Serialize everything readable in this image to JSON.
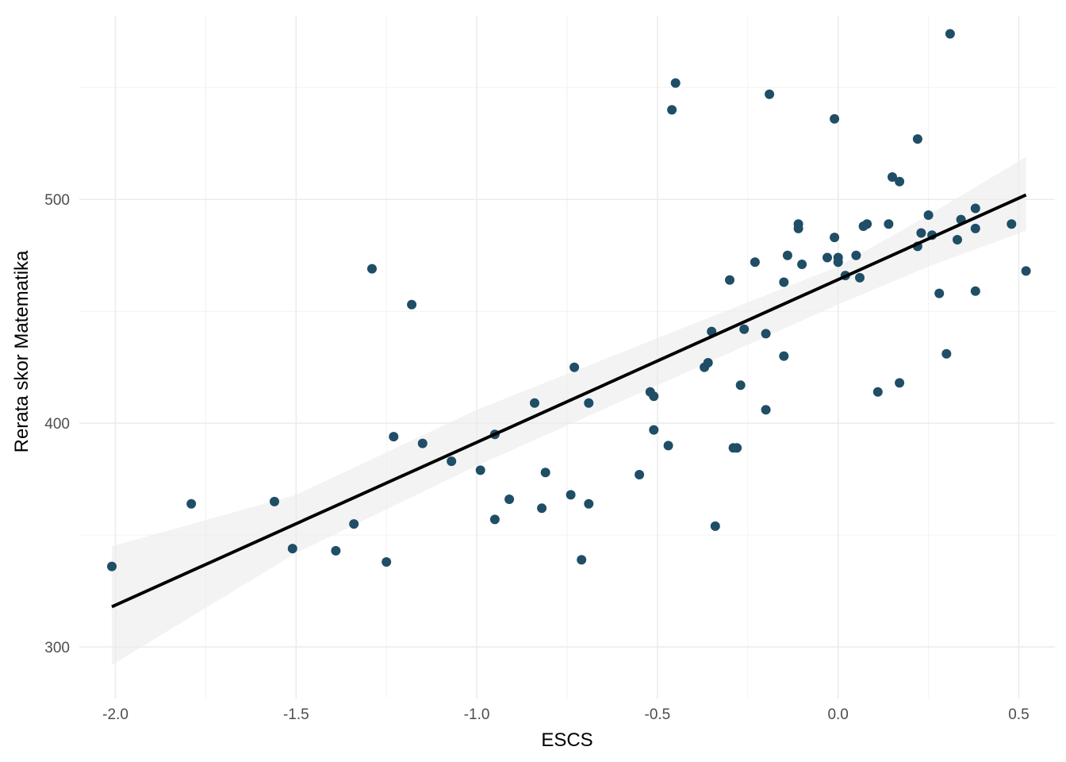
{
  "chart_data": {
    "type": "scatter",
    "title": "",
    "xlabel": "ESCS",
    "ylabel": "Rerata skor Matematika",
    "xlim": [
      -2.1,
      0.6
    ],
    "ylim": [
      277,
      582
    ],
    "x_ticks": [
      -2.0,
      -1.5,
      -1.0,
      -0.5,
      0.0,
      0.5
    ],
    "x_tick_labels": [
      "-2.0",
      "-1.5",
      "-1.0",
      "-0.5",
      "0.0",
      "0.5"
    ],
    "y_ticks": [
      300,
      400,
      500
    ],
    "y_tick_labels": [
      "300",
      "400",
      "500"
    ],
    "grid": true,
    "point_color": "#1f4e66",
    "line_color": "#000000",
    "ribbon_color": "#ebebeb",
    "points": [
      {
        "x": -2.01,
        "y": 336
      },
      {
        "x": -1.79,
        "y": 364
      },
      {
        "x": -1.56,
        "y": 365
      },
      {
        "x": -1.51,
        "y": 344
      },
      {
        "x": -1.39,
        "y": 343
      },
      {
        "x": -1.34,
        "y": 355
      },
      {
        "x": -1.29,
        "y": 469
      },
      {
        "x": -1.25,
        "y": 338
      },
      {
        "x": -1.23,
        "y": 394
      },
      {
        "x": -1.18,
        "y": 453
      },
      {
        "x": -1.15,
        "y": 391
      },
      {
        "x": -1.07,
        "y": 383
      },
      {
        "x": -0.99,
        "y": 379
      },
      {
        "x": -0.95,
        "y": 395
      },
      {
        "x": -0.95,
        "y": 357
      },
      {
        "x": -0.91,
        "y": 366
      },
      {
        "x": -0.84,
        "y": 409
      },
      {
        "x": -0.82,
        "y": 362
      },
      {
        "x": -0.81,
        "y": 378
      },
      {
        "x": -0.74,
        "y": 368
      },
      {
        "x": -0.73,
        "y": 425
      },
      {
        "x": -0.71,
        "y": 339
      },
      {
        "x": -0.69,
        "y": 409
      },
      {
        "x": -0.69,
        "y": 364
      },
      {
        "x": -0.55,
        "y": 377
      },
      {
        "x": -0.52,
        "y": 414
      },
      {
        "x": -0.51,
        "y": 412
      },
      {
        "x": -0.51,
        "y": 397
      },
      {
        "x": -0.47,
        "y": 390
      },
      {
        "x": -0.46,
        "y": 540
      },
      {
        "x": -0.45,
        "y": 552
      },
      {
        "x": -0.37,
        "y": 425
      },
      {
        "x": -0.36,
        "y": 427
      },
      {
        "x": -0.35,
        "y": 441
      },
      {
        "x": -0.34,
        "y": 354
      },
      {
        "x": -0.3,
        "y": 464
      },
      {
        "x": -0.29,
        "y": 389
      },
      {
        "x": -0.28,
        "y": 389
      },
      {
        "x": -0.27,
        "y": 417
      },
      {
        "x": -0.26,
        "y": 442
      },
      {
        "x": -0.23,
        "y": 472
      },
      {
        "x": -0.2,
        "y": 440
      },
      {
        "x": -0.2,
        "y": 406
      },
      {
        "x": -0.19,
        "y": 547
      },
      {
        "x": -0.15,
        "y": 463
      },
      {
        "x": -0.15,
        "y": 430
      },
      {
        "x": -0.14,
        "y": 475
      },
      {
        "x": -0.11,
        "y": 489
      },
      {
        "x": -0.11,
        "y": 487
      },
      {
        "x": -0.1,
        "y": 471
      },
      {
        "x": -0.03,
        "y": 474
      },
      {
        "x": -0.01,
        "y": 483
      },
      {
        "x": -0.01,
        "y": 536
      },
      {
        "x": 0.0,
        "y": 474
      },
      {
        "x": 0.0,
        "y": 472
      },
      {
        "x": 0.02,
        "y": 466
      },
      {
        "x": 0.05,
        "y": 475
      },
      {
        "x": 0.06,
        "y": 465
      },
      {
        "x": 0.07,
        "y": 488
      },
      {
        "x": 0.08,
        "y": 489
      },
      {
        "x": 0.11,
        "y": 414
      },
      {
        "x": 0.14,
        "y": 489
      },
      {
        "x": 0.15,
        "y": 510
      },
      {
        "x": 0.17,
        "y": 508
      },
      {
        "x": 0.17,
        "y": 418
      },
      {
        "x": 0.22,
        "y": 479
      },
      {
        "x": 0.22,
        "y": 527
      },
      {
        "x": 0.23,
        "y": 485
      },
      {
        "x": 0.25,
        "y": 493
      },
      {
        "x": 0.26,
        "y": 484
      },
      {
        "x": 0.28,
        "y": 458
      },
      {
        "x": 0.3,
        "y": 431
      },
      {
        "x": 0.31,
        "y": 574
      },
      {
        "x": 0.33,
        "y": 482
      },
      {
        "x": 0.34,
        "y": 491
      },
      {
        "x": 0.38,
        "y": 496
      },
      {
        "x": 0.38,
        "y": 487
      },
      {
        "x": 0.38,
        "y": 459
      },
      {
        "x": 0.48,
        "y": 489
      },
      {
        "x": 0.52,
        "y": 468
      }
    ],
    "fit_line": {
      "x": [
        -2.01,
        0.52
      ],
      "y": [
        318,
        502
      ]
    },
    "confidence_band": {
      "x": [
        -2.01,
        -1.5,
        -1.0,
        -0.5,
        0.0,
        0.25,
        0.52
      ],
      "lower": [
        292,
        342,
        381,
        417,
        453,
        470,
        486
      ],
      "upper": [
        345,
        368,
        406,
        438,
        470,
        493,
        519
      ]
    }
  }
}
